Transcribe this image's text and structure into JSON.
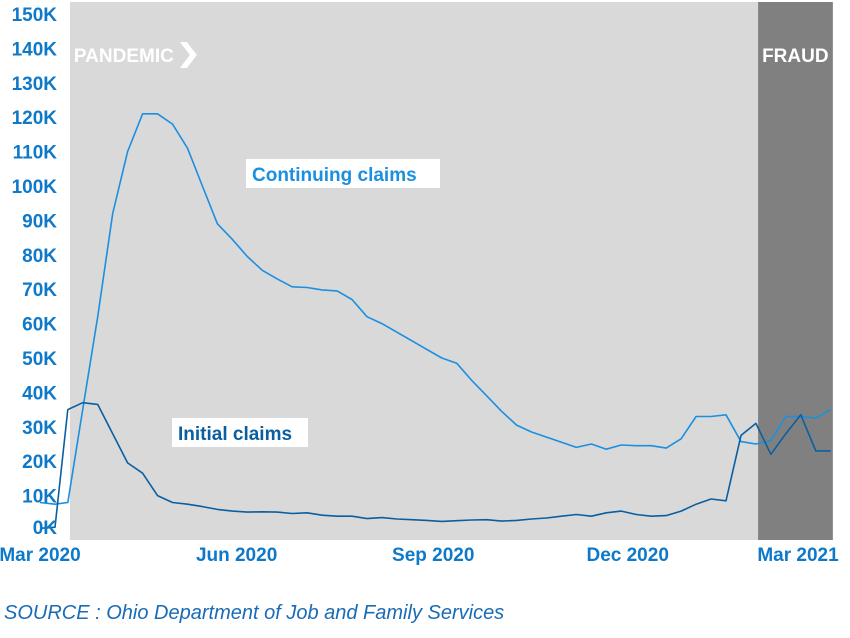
{
  "chart_data": {
    "type": "line",
    "x_tick_labels": [
      "Mar 2020",
      "Jun 2020",
      "Sep 2020",
      "Dec 2020",
      "Mar 2021"
    ],
    "y_tick_labels": [
      "0K",
      "10K",
      "20K",
      "30K",
      "40K",
      "50K",
      "60K",
      "70K",
      "80K",
      "90K",
      "100K",
      "110K",
      "120K",
      "130K",
      "140K",
      "150K"
    ],
    "ylim": [
      0,
      150000
    ],
    "xlim": [
      "2020-03-01",
      "2021-03-08"
    ],
    "grid": false,
    "bands": [
      {
        "label": "PANDEMIC",
        "start": "2020-03-15",
        "end": "2021-01-31",
        "color": "#d9d9d9"
      },
      {
        "label": "FRAUD",
        "start": "2021-01-31",
        "end": "2021-03-07",
        "color": "#808080"
      }
    ],
    "series": [
      {
        "name": "Continuing claims",
        "color": "#1b8fe0",
        "x": [
          "2020-03-01",
          "2020-03-08",
          "2020-03-14",
          "2020-03-21",
          "2020-03-28",
          "2020-04-04",
          "2020-04-11",
          "2020-04-18",
          "2020-04-25",
          "2020-05-02",
          "2020-05-09",
          "2020-05-16",
          "2020-05-23",
          "2020-05-30",
          "2020-06-06",
          "2020-06-13",
          "2020-06-20",
          "2020-06-27",
          "2020-07-04",
          "2020-07-11",
          "2020-07-18",
          "2020-07-25",
          "2020-08-01",
          "2020-08-08",
          "2020-08-15",
          "2020-08-22",
          "2020-08-29",
          "2020-09-05",
          "2020-09-12",
          "2020-09-19",
          "2020-09-26",
          "2020-10-03",
          "2020-10-10",
          "2020-10-17",
          "2020-10-24",
          "2020-10-31",
          "2020-11-07",
          "2020-11-14",
          "2020-11-21",
          "2020-11-28",
          "2020-12-05",
          "2020-12-12",
          "2020-12-19",
          "2020-12-26",
          "2021-01-02",
          "2021-01-09",
          "2021-01-16",
          "2021-01-23",
          "2021-01-30",
          "2021-02-06",
          "2021-02-13",
          "2021-02-20",
          "2021-02-27",
          "2021-03-06"
        ],
        "values": [
          8000,
          7500,
          8000,
          35000,
          62000,
          92000,
          110000,
          121000,
          121000,
          118000,
          111000,
          100000,
          89000,
          84500,
          79500,
          75500,
          73000,
          70700,
          70500,
          69800,
          69500,
          67000,
          62000,
          60000,
          57500,
          55000,
          52500,
          50000,
          48500,
          43500,
          39000,
          34500,
          30500,
          28500,
          27000,
          25500,
          24000,
          25000,
          23500,
          24700,
          24500,
          24500,
          23800,
          26500,
          33000,
          33000,
          33500,
          25700,
          25000,
          26000,
          33000,
          33000,
          32500,
          35000
        ]
      },
      {
        "name": "Initial claims",
        "color": "#0b5fa0",
        "x": [
          "2020-03-01",
          "2020-03-08",
          "2020-03-14",
          "2020-03-21",
          "2020-03-28",
          "2020-04-04",
          "2020-04-11",
          "2020-04-18",
          "2020-04-25",
          "2020-05-02",
          "2020-05-09",
          "2020-05-16",
          "2020-05-23",
          "2020-05-30",
          "2020-06-06",
          "2020-06-13",
          "2020-06-20",
          "2020-06-27",
          "2020-07-04",
          "2020-07-11",
          "2020-07-18",
          "2020-07-25",
          "2020-08-01",
          "2020-08-08",
          "2020-08-15",
          "2020-08-22",
          "2020-08-29",
          "2020-09-05",
          "2020-09-12",
          "2020-09-19",
          "2020-09-26",
          "2020-10-03",
          "2020-10-10",
          "2020-10-17",
          "2020-10-24",
          "2020-10-31",
          "2020-11-07",
          "2020-11-14",
          "2020-11-21",
          "2020-11-28",
          "2020-12-05",
          "2020-12-12",
          "2020-12-19",
          "2020-12-26",
          "2021-01-02",
          "2021-01-09",
          "2021-01-16",
          "2021-01-23",
          "2021-01-30",
          "2021-02-06",
          "2021-02-13",
          "2021-02-20",
          "2021-02-27",
          "2021-03-06"
        ],
        "values": [
          500,
          800,
          35000,
          37000,
          36500,
          28000,
          19500,
          16500,
          10000,
          8000,
          7500,
          6800,
          6000,
          5500,
          5200,
          5300,
          5200,
          4800,
          5000,
          4300,
          4000,
          4000,
          3300,
          3600,
          3200,
          3000,
          2800,
          2500,
          2700,
          2900,
          3000,
          2600,
          2800,
          3200,
          3500,
          4000,
          4500,
          4000,
          5000,
          5500,
          4500,
          4000,
          4200,
          5500,
          7500,
          9000,
          8500,
          27500,
          31000,
          22000,
          28000,
          33500,
          23000,
          23000
        ]
      }
    ]
  },
  "labels": {
    "continuing": "Continuing claims",
    "initial": "Initial claims"
  },
  "source": "SOURCE : Ohio Department of Job and Family Services",
  "colors": {
    "axis_text": "#0f79c9",
    "source_text": "#1a6bb5",
    "pandemic_band": "#d9d9d9",
    "fraud_band": "#808080"
  }
}
